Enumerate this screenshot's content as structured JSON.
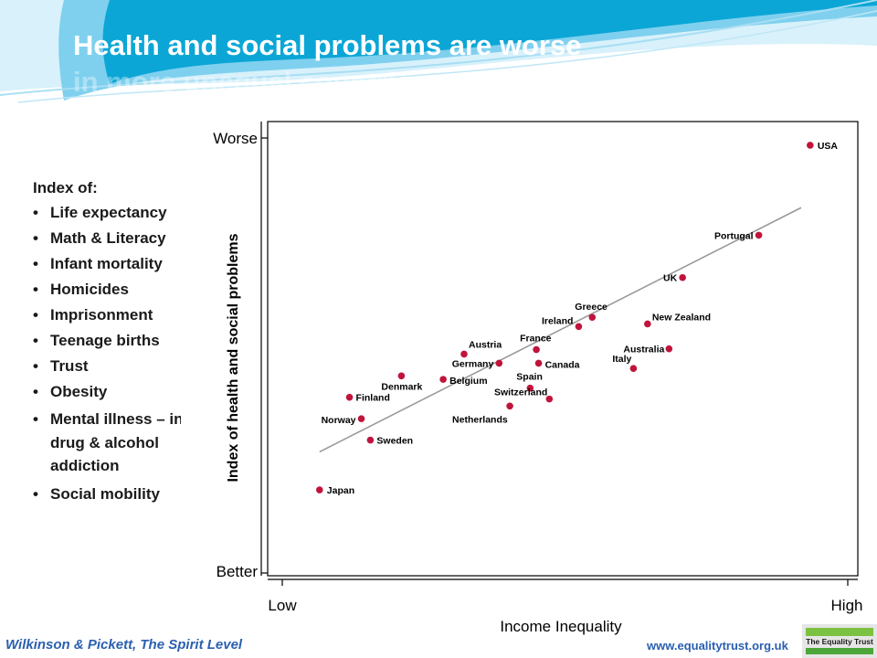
{
  "slide": {
    "title_line1": "Health and social problems are worse",
    "title_line2": "in more unequal countries"
  },
  "index_panel": {
    "heading": "Index of:",
    "items": [
      "Life expectancy",
      "Math & Literacy",
      "Infant mortality",
      "Homicides",
      "Imprisonment",
      "Teenage births",
      "Trust",
      "Obesity",
      "Mental illness – incl. drug & alcohol addiction",
      "Social mobility"
    ]
  },
  "footer": {
    "citation": "Wilkinson & Pickett, The Spirit Level",
    "url": "www.equalitytrust.org.uk",
    "logo_text": "The Equality Trust"
  },
  "colors": {
    "point": "#c0143c",
    "trend_line": "#999999",
    "footer_text": "#2a5fb0",
    "title_text": "#ffffff",
    "wave_light": "#d8f1fb",
    "wave_mid": "#7fd0ee",
    "wave_dark": "#0ba6d6"
  },
  "chart_data": {
    "type": "scatter",
    "xlabel": "Income Inequality",
    "ylabel": "Index of health and social problems",
    "x_tick_labels": [
      "Low",
      "High"
    ],
    "y_tick_labels": [
      "Worse",
      "Better"
    ],
    "xlim": [
      0,
      100
    ],
    "ylim": [
      0,
      100
    ],
    "grid": false,
    "legend": "none",
    "points": [
      {
        "label": "USA",
        "x": 93.5,
        "y": 97.3
      },
      {
        "label": "Portugal",
        "x": 84.4,
        "y": 76.7
      },
      {
        "label": "UK",
        "x": 70.9,
        "y": 67.0
      },
      {
        "label": "Greece",
        "x": 54.9,
        "y": 57.9
      },
      {
        "label": "Ireland",
        "x": 52.5,
        "y": 55.8
      },
      {
        "label": "New Zealand",
        "x": 64.7,
        "y": 56.4
      },
      {
        "label": "France",
        "x": 45.0,
        "y": 50.5
      },
      {
        "label": "Australia",
        "x": 68.5,
        "y": 50.7
      },
      {
        "label": "Austria",
        "x": 32.2,
        "y": 49.5
      },
      {
        "label": "Germany",
        "x": 38.4,
        "y": 47.4
      },
      {
        "label": "Canada",
        "x": 45.4,
        "y": 47.4
      },
      {
        "label": "Italy",
        "x": 62.2,
        "y": 46.2
      },
      {
        "label": "Denmark",
        "x": 21.1,
        "y": 44.5
      },
      {
        "label": "Belgium",
        "x": 28.5,
        "y": 43.7
      },
      {
        "label": "Spain",
        "x": 43.9,
        "y": 41.7
      },
      {
        "label": "Switzerland",
        "x": 47.3,
        "y": 39.2
      },
      {
        "label": "Finland",
        "x": 11.9,
        "y": 39.6
      },
      {
        "label": "Netherlands",
        "x": 40.3,
        "y": 37.6
      },
      {
        "label": "Norway",
        "x": 14.0,
        "y": 34.7
      },
      {
        "label": "Sweden",
        "x": 15.6,
        "y": 29.8
      },
      {
        "label": "Japan",
        "x": 6.6,
        "y": 18.4
      }
    ],
    "trend_line": {
      "x": [
        6.6,
        91.9
      ],
      "y": [
        27.1,
        83.0
      ]
    }
  }
}
